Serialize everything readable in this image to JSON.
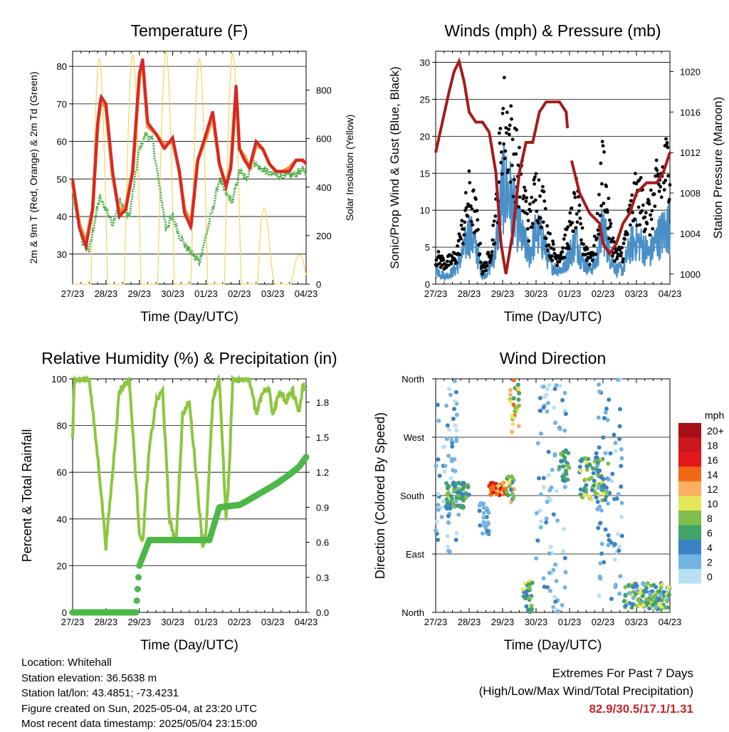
{
  "chart_data": [
    {
      "type": "line",
      "title": "Temperature (F)",
      "xlabel": "Time (Day/UTC)",
      "ylabel": "2m & 9m T (Red, Orange) & 2m Td (Green)",
      "y2label": "Solar Insolation (Yellow)",
      "x_ticks": [
        "27/23",
        "28/23",
        "29/23",
        "30/23",
        "01/23",
        "02/23",
        "03/23",
        "04/23"
      ],
      "ylim": [
        22,
        84
      ],
      "y_ticks": [
        30,
        40,
        50,
        60,
        70,
        80
      ],
      "y2lim": [
        0,
        960
      ],
      "y2_ticks": [
        0,
        200,
        400,
        600,
        800
      ],
      "x_unit": "days since 27/23",
      "series": [
        {
          "name": "2m T",
          "color": "#d62728",
          "x": [
            0,
            0.2,
            0.4,
            0.6,
            0.75,
            0.85,
            1.0,
            1.2,
            1.4,
            1.6,
            1.8,
            2.0,
            2.1,
            2.25,
            2.5,
            2.75,
            3.0,
            3.2,
            3.35,
            3.55,
            3.75,
            4.0,
            4.2,
            4.4,
            4.6,
            4.75,
            4.9,
            5.0,
            5.15,
            5.3,
            5.5,
            5.7,
            5.9,
            6.1,
            6.3,
            6.5,
            6.7,
            6.9,
            7.0
          ],
          "values": [
            50,
            37,
            32,
            42,
            65,
            72,
            70,
            52,
            40,
            42,
            52,
            78,
            82,
            65,
            62,
            58,
            61,
            52,
            41,
            37,
            55,
            62,
            68,
            54,
            48,
            53,
            75,
            58,
            55,
            53,
            60,
            58,
            54,
            52,
            52,
            52,
            55,
            55,
            54
          ]
        },
        {
          "name": "9m T",
          "color": "#f28e2b",
          "x": [
            0,
            0.2,
            0.4,
            0.6,
            0.75,
            0.85,
            1.0,
            1.2,
            1.4,
            1.6,
            1.8,
            2.0,
            2.1,
            2.25,
            2.5,
            2.75,
            3.0,
            3.2,
            3.35,
            3.55,
            3.75,
            4.0,
            4.2,
            4.4,
            4.6,
            4.75,
            4.9,
            5.0,
            5.15,
            5.3,
            5.5,
            5.7,
            5.9,
            6.1,
            6.3,
            6.5,
            6.7,
            6.9,
            7.0
          ],
          "values": [
            49,
            38,
            33,
            42,
            64,
            71,
            69,
            51,
            41,
            43,
            52,
            77,
            81,
            64,
            62,
            59,
            60,
            52,
            42,
            38,
            55,
            61,
            67,
            54,
            48,
            54,
            74,
            58,
            56,
            53,
            59,
            58,
            54,
            52,
            52,
            53,
            55,
            55,
            54
          ]
        },
        {
          "name": "2m Td",
          "color": "#4daf4a",
          "x": [
            0,
            0.3,
            0.5,
            0.8,
            1.0,
            1.2,
            1.4,
            1.7,
            2.0,
            2.2,
            2.4,
            2.6,
            2.8,
            3.0,
            3.2,
            3.4,
            3.6,
            3.8,
            4.0,
            4.2,
            4.4,
            4.6,
            4.8,
            5.0,
            5.2,
            5.4,
            5.6,
            5.8,
            6.0,
            6.2,
            6.4,
            6.6,
            6.8,
            7.0
          ],
          "values": [
            45,
            33,
            31,
            45,
            42,
            38,
            44,
            40,
            58,
            62,
            60,
            48,
            37,
            40,
            35,
            32,
            30,
            28,
            35,
            42,
            50,
            46,
            44,
            52,
            50,
            55,
            53,
            52,
            51,
            51,
            51,
            51,
            52,
            52
          ]
        },
        {
          "name": "Solar Insolation",
          "color": "#f6d35b",
          "axis": "y2",
          "x": [
            0.5,
            1.0,
            1.5,
            2.0,
            2.5,
            3.0,
            3.5,
            4.0,
            4.5,
            5.0,
            5.5,
            6.0,
            6.5
          ],
          "values": [
            0,
            930,
            0,
            950,
            0,
            960,
            0,
            920,
            0,
            960,
            0,
            120,
            0
          ]
        }
      ]
    },
    {
      "type": "scatter",
      "title": "Winds (mph) & Pressure (mb)",
      "xlabel": "Time (Day/UTC)",
      "ylabel": "Sonic/Prop Wind & Gust (Blue, Black)",
      "y2label": "Station Pressure (Maroon)",
      "x_ticks": [
        "27/23",
        "28/23",
        "29/23",
        "30/23",
        "01/23",
        "02/23",
        "03/23",
        "04/23"
      ],
      "ylim": [
        0,
        31.5
      ],
      "y_ticks": [
        0,
        5,
        10,
        15,
        20,
        25,
        30
      ],
      "y2lim": [
        999,
        1022
      ],
      "y2_ticks": [
        1000,
        1004,
        1008,
        1012,
        1016,
        1020
      ],
      "x_unit": "days since 27/23",
      "series": [
        {
          "name": "Sonic/Prop Wind",
          "color": "#4a90c8",
          "x": [
            0,
            0.3,
            0.6,
            0.8,
            1.0,
            1.2,
            1.4,
            1.6,
            1.8,
            2.0,
            2.2,
            2.4,
            2.6,
            2.8,
            3.0,
            3.2,
            3.4,
            3.6,
            3.8,
            4.0,
            4.2,
            4.4,
            4.6,
            4.8,
            5.0,
            5.2,
            5.4,
            5.6,
            5.8,
            6.0,
            6.2,
            6.4,
            6.6,
            6.8,
            7.0
          ],
          "values": [
            2,
            1,
            2,
            4,
            7,
            5,
            1,
            2,
            5,
            13,
            12,
            9,
            6,
            4,
            7,
            6,
            3,
            2,
            2,
            4,
            6,
            3,
            2,
            3,
            8,
            4,
            2,
            2,
            5,
            6,
            5,
            4,
            6,
            7,
            8
          ]
        },
        {
          "name": "Gust",
          "color": "#000000",
          "x": [
            0,
            0.3,
            0.6,
            0.8,
            1.0,
            1.2,
            1.4,
            1.6,
            1.8,
            2.0,
            2.2,
            2.4,
            2.6,
            2.8,
            3.0,
            3.2,
            3.4,
            3.6,
            3.8,
            4.0,
            4.2,
            4.4,
            4.6,
            4.8,
            5.0,
            5.2,
            5.4,
            5.6,
            5.8,
            6.0,
            6.2,
            6.4,
            6.6,
            6.8,
            7.0
          ],
          "values": [
            4,
            3,
            4,
            8,
            13,
            10,
            2,
            4,
            10,
            25,
            22,
            18,
            14,
            9,
            14,
            12,
            6,
            4,
            5,
            8,
            12,
            6,
            4,
            6,
            18,
            8,
            4,
            5,
            10,
            13,
            12,
            10,
            14,
            16,
            19
          ]
        },
        {
          "name": "Station Pressure",
          "color": "#a51c1c",
          "axis": "y2",
          "x": [
            0,
            0.2,
            0.4,
            0.55,
            0.7,
            0.85,
            1.0,
            1.2,
            1.4,
            1.6,
            1.8,
            1.95,
            2.1,
            2.3,
            2.5,
            2.7,
            2.9,
            3.1,
            3.3,
            3.5,
            3.7,
            3.9,
            4.0,
            4.3,
            4.6,
            4.9,
            5.0,
            5.2,
            5.4,
            5.6,
            5.8,
            6.0,
            6.3,
            6.6,
            6.8,
            7.0
          ],
          "values": [
            1012,
            1015,
            1018,
            1020,
            1021,
            1019,
            1016,
            1015,
            1015,
            1014,
            1010,
            1003,
            1000,
            1004,
            1010,
            1013,
            1013,
            1016,
            1017,
            1017,
            1017,
            1016,
            1012,
            1008,
            1006,
            1005,
            1003,
            1002,
            1003,
            1005,
            1006,
            1008,
            1009,
            1009,
            1010,
            1012
          ]
        }
      ]
    },
    {
      "type": "line",
      "title": "Relative Humidity (%) & Precipitation (in)",
      "xlabel": "Time (Day/UTC)",
      "ylabel": "Percent & Total Rainfall",
      "x_ticks": [
        "27/23",
        "28/23",
        "29/23",
        "30/23",
        "01/23",
        "02/23",
        "03/23",
        "04/23"
      ],
      "ylim": [
        0,
        100
      ],
      "y_ticks": [
        0,
        20,
        40,
        60,
        80,
        100
      ],
      "y2lim": [
        0,
        2.0
      ],
      "y2_ticks": [
        "0.0",
        "0.3",
        "0.6",
        "0.9",
        "1.2",
        "1.5",
        "1.8"
      ],
      "x_unit": "days since 27/23",
      "series": [
        {
          "name": "Relative Humidity",
          "color": "#8dc63f",
          "x": [
            0,
            0.05,
            0.5,
            0.8,
            1.0,
            1.2,
            1.4,
            1.7,
            2.0,
            2.1,
            2.3,
            2.5,
            2.7,
            2.9,
            3.1,
            3.3,
            3.5,
            3.7,
            3.9,
            4.0,
            4.2,
            4.4,
            4.6,
            4.7,
            4.8,
            5.0,
            5.3,
            5.5,
            5.7,
            5.9,
            6.0,
            6.2,
            6.4,
            6.6,
            6.8,
            6.9,
            7.0
          ],
          "values": [
            75,
            100,
            100,
            60,
            28,
            60,
            95,
            100,
            35,
            30,
            70,
            90,
            95,
            40,
            30,
            85,
            90,
            60,
            28,
            35,
            90,
            100,
            40,
            62,
            100,
            100,
            100,
            85,
            95,
            95,
            85,
            95,
            90,
            95,
            85,
            97,
            95
          ]
        },
        {
          "name": "Total Precipitation",
          "color": "#4db848",
          "axis": "y2",
          "x": [
            0,
            1.9,
            2.0,
            2.3,
            4.1,
            4.4,
            5.0,
            5.2,
            5.5,
            5.8,
            6.1,
            6.5,
            6.8,
            7.0
          ],
          "values": [
            0,
            0,
            0.4,
            0.62,
            0.62,
            0.9,
            0.92,
            0.95,
            1.0,
            1.05,
            1.1,
            1.18,
            1.25,
            1.33
          ]
        }
      ]
    },
    {
      "type": "scatter",
      "title": "Wind Direction",
      "xlabel": "Time (Day/UTC)",
      "ylabel": "Direction (Colored By Speed)",
      "x_ticks": [
        "27/23",
        "28/23",
        "29/23",
        "30/23",
        "01/23",
        "02/23",
        "03/23",
        "04/23"
      ],
      "y_ticks": [
        "North",
        "East",
        "South",
        "West",
        "North"
      ],
      "ylim": [
        0,
        360
      ],
      "x_unit": "days since 27/23",
      "legend_title": "mph",
      "legend_labels": [
        "20+",
        "18",
        "16",
        "14",
        "12",
        "10",
        "8",
        "6",
        "4",
        "2",
        "0"
      ],
      "legend_colors": [
        "#a50f15",
        "#cb181d",
        "#e31a1c",
        "#f16913",
        "#fdae61",
        "#e6e65a",
        "#7fbf4d",
        "#41a36a",
        "#3b82c4",
        "#73b3e3",
        "#b9e0f5"
      ],
      "legend_placement": "right",
      "clusters": [
        {
          "x0": 0.0,
          "x1": 0.7,
          "dir_lo": 90,
          "dir_hi": 360,
          "spd_lo": 0,
          "spd_hi": 4
        },
        {
          "x0": 0.3,
          "x1": 1.0,
          "dir_lo": 160,
          "dir_hi": 200,
          "spd_lo": 3,
          "spd_hi": 8
        },
        {
          "x0": 1.3,
          "x1": 1.6,
          "dir_lo": 120,
          "dir_hi": 170,
          "spd_lo": 1,
          "spd_hi": 4
        },
        {
          "x0": 1.6,
          "x1": 2.1,
          "dir_lo": 180,
          "dir_hi": 200,
          "spd_lo": 10,
          "spd_hi": 18
        },
        {
          "x0": 2.1,
          "x1": 2.35,
          "dir_lo": 170,
          "dir_hi": 210,
          "spd_lo": 4,
          "spd_hi": 12
        },
        {
          "x0": 2.2,
          "x1": 2.5,
          "dir_lo": 270,
          "dir_hi": 360,
          "spd_lo": 6,
          "spd_hi": 16
        },
        {
          "x0": 2.6,
          "x1": 2.9,
          "dir_lo": 0,
          "dir_hi": 50,
          "spd_lo": 3,
          "spd_hi": 10
        },
        {
          "x0": 3.0,
          "x1": 3.9,
          "dir_lo": 0,
          "dir_hi": 360,
          "spd_lo": 0,
          "spd_hi": 4
        },
        {
          "x0": 3.7,
          "x1": 4.0,
          "dir_lo": 200,
          "dir_hi": 250,
          "spd_lo": 4,
          "spd_hi": 8
        },
        {
          "x0": 4.3,
          "x1": 5.2,
          "dir_lo": 170,
          "dir_hi": 240,
          "spd_lo": 3,
          "spd_hi": 10
        },
        {
          "x0": 4.8,
          "x1": 5.6,
          "dir_lo": 10,
          "dir_hi": 360,
          "spd_lo": 0,
          "spd_hi": 5
        },
        {
          "x0": 5.6,
          "x1": 7.0,
          "dir_lo": 5,
          "dir_hi": 45,
          "spd_lo": 2,
          "spd_hi": 10
        }
      ]
    }
  ],
  "info": {
    "location": "Location: Whitehall",
    "elevation": "Station elevation: 36.5638 m",
    "latlon": "Station lat/lon: 43.4851; -73.4231",
    "created": "Figure created on Sun, 2025-05-04, at 23:20 UTC",
    "latest": "Most recent data timestamp: 2025/05/04 23:15:00"
  },
  "extremes": {
    "title": "Extremes For Past 7 Days",
    "subtitle": "(High/Low/Max Wind/Total Precipitation)",
    "values": "82.9/30.5/17.1/1.31"
  }
}
